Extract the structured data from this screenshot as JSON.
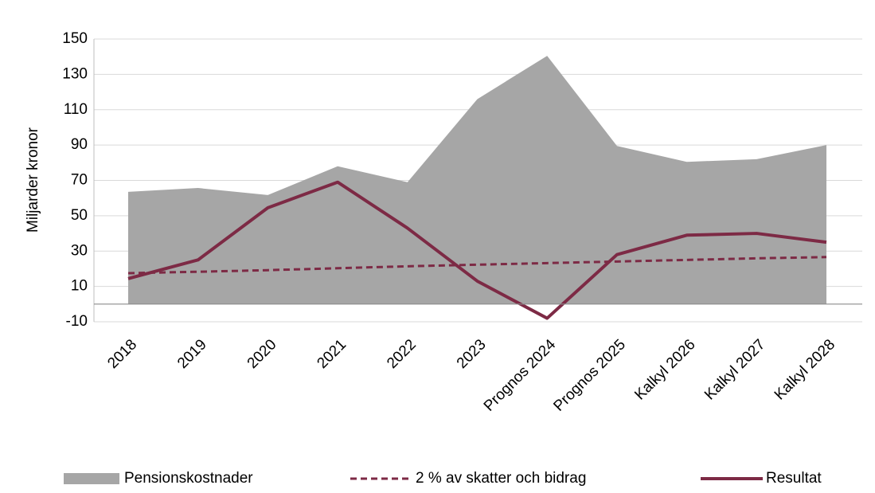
{
  "chart_data": {
    "type": "line",
    "y_label": "Miljarder kronor",
    "categories": [
      "2018",
      "2019",
      "2020",
      "2021",
      "2022",
      "2023",
      "Prognos 2024",
      "Prognos 2025",
      "Kalkyl 2026",
      "Kalkyl 2027",
      "Kalkyl 2028"
    ],
    "series": [
      {
        "name": "Pensionskostnader",
        "color": "#a6a6a6",
        "kind": "area",
        "values": [
          63.5,
          65.7,
          61.7,
          78,
          69,
          116,
          140.5,
          89.5,
          80.5,
          82,
          90
        ]
      },
      {
        "name": "2 % av skatter och bidrag",
        "color": "#7d2a45",
        "kind": "line",
        "dashed": true,
        "values": [
          17.5,
          18.3,
          19.2,
          20.3,
          21.4,
          22.3,
          23.2,
          24.1,
          25,
          25.9,
          26.6
        ]
      },
      {
        "name": "Resultat",
        "color": "#7d2a45",
        "kind": "line",
        "dashed": false,
        "values": [
          14.4,
          25,
          54.5,
          69,
          43,
          13,
          -8,
          28,
          39,
          40,
          35
        ]
      }
    ],
    "ylim": [
      -10,
      150
    ],
    "yticks": [
      -10,
      10,
      30,
      50,
      70,
      90,
      110,
      130,
      150
    ],
    "grid": true
  }
}
